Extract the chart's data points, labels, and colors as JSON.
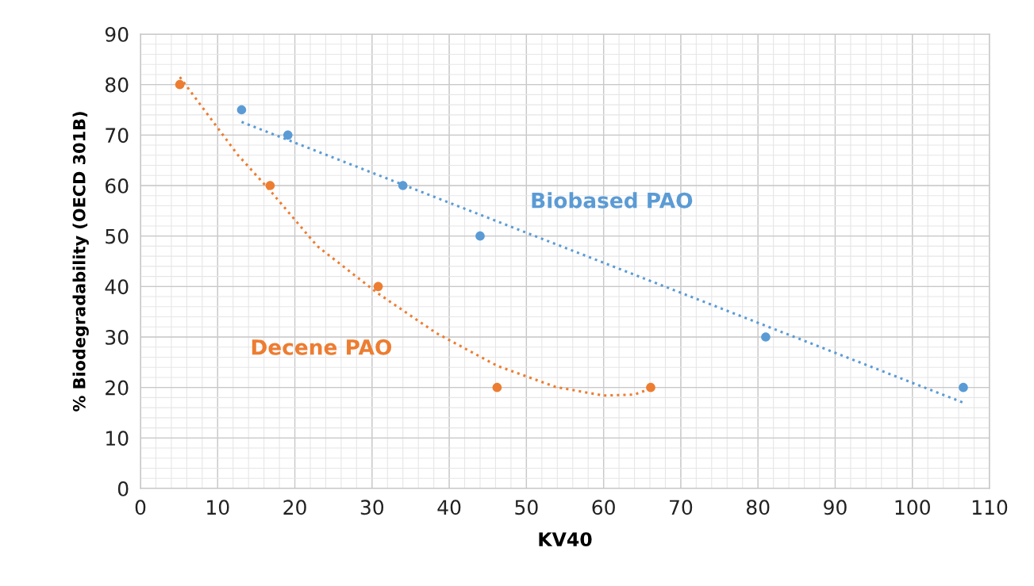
{
  "chart_data": {
    "type": "scatter",
    "xlabel": "KV40",
    "ylabel": "% Biodegradability (OECD 301B)",
    "xlim": [
      0,
      110
    ],
    "xticks": [
      0,
      10,
      20,
      30,
      40,
      50,
      60,
      70,
      80,
      90,
      100,
      110
    ],
    "ylim": [
      0,
      90
    ],
    "yticks": [
      0,
      10,
      20,
      30,
      40,
      50,
      60,
      70,
      80,
      90
    ],
    "grid": true,
    "series": [
      {
        "name": "Biobased PAO",
        "marker": "circle",
        "color": "#5b9bd5",
        "x": [
          13.1,
          19.1,
          34.0,
          44.0,
          81.0,
          106.6
        ],
        "values": [
          75,
          70,
          60,
          50,
          30,
          20
        ]
      },
      {
        "name": "Decene PAO",
        "marker": "circle",
        "color": "#ed7d31",
        "x": [
          5.1,
          16.8,
          30.8,
          46.2,
          66.1
        ],
        "values": [
          80,
          60,
          40,
          20,
          20
        ]
      },
      {
        "type": "line",
        "marker": "none",
        "line_style": "dotted",
        "color": "#5b9bd5",
        "x": [
          13.1,
          106.6
        ],
        "values": [
          72.6,
          17.0
        ]
      },
      {
        "type": "line",
        "marker": "none",
        "line_style": "dotted",
        "color": "#ed7d31",
        "x": [
          5.1,
          12.6,
          16.8,
          22.9,
          30.8,
          38.3,
          46.2,
          53.8,
          60.0,
          64.0,
          66.1
        ],
        "values": [
          81.5,
          66.1,
          59.0,
          48.0,
          38.6,
          30.8,
          24.3,
          20.1,
          18.4,
          18.6,
          19.8
        ]
      }
    ]
  }
}
